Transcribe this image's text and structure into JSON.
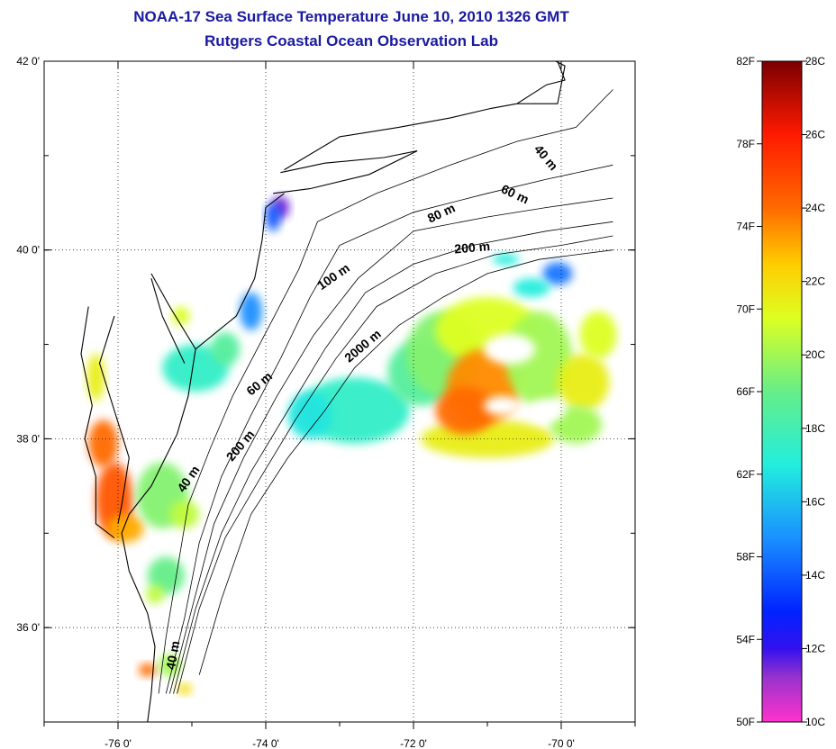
{
  "title_line1": "NOAA-17 Sea Surface Temperature June 10, 2010 1326 GMT",
  "title_line2": "Rutgers Coastal Ocean Observation Lab",
  "map": {
    "lon_range": [
      -77.0,
      -69.0
    ],
    "lat_range": [
      35.0,
      42.0
    ],
    "x_ticks": [
      {
        "value": -76,
        "label": "-76 0'"
      },
      {
        "value": -74,
        "label": "-74 0'"
      },
      {
        "value": -72,
        "label": "-72 0'"
      },
      {
        "value": -70,
        "label": "-70 0'"
      }
    ],
    "y_ticks": [
      {
        "value": 42,
        "label": "42 0'"
      },
      {
        "value": 40,
        "label": "40 0'"
      },
      {
        "value": 38,
        "label": "38 0'"
      },
      {
        "value": 36,
        "label": "36 0'"
      }
    ],
    "grid": "dotted",
    "contour_labels": [
      {
        "text": "40 m",
        "lon": -70.25,
        "lat": 40.95,
        "angle": 50
      },
      {
        "text": "60 m",
        "lon": -70.65,
        "lat": 40.55,
        "angle": 25
      },
      {
        "text": "80 m",
        "lon": -71.6,
        "lat": 40.35,
        "angle": -25
      },
      {
        "text": "200 m",
        "lon": -71.2,
        "lat": 39.98,
        "angle": -5
      },
      {
        "text": "100 m",
        "lon": -73.05,
        "lat": 39.68,
        "angle": -35
      },
      {
        "text": "2000 m",
        "lon": -72.65,
        "lat": 38.95,
        "angle": -40
      },
      {
        "text": "60 m",
        "lon": -74.05,
        "lat": 38.55,
        "angle": -40
      },
      {
        "text": "200 m",
        "lon": -74.3,
        "lat": 37.9,
        "angle": -50
      },
      {
        "text": "40 m",
        "lon": -75.0,
        "lat": 37.55,
        "angle": -55
      },
      {
        "text": "40 m",
        "lon": -75.2,
        "lat": 35.7,
        "angle": -80
      }
    ]
  },
  "colorbar": {
    "celsius_range": [
      10,
      28
    ],
    "fahrenheit_labels": [
      "82F",
      "78F",
      "74F",
      "70F",
      "66F",
      "62F",
      "58F",
      "54F",
      "50F"
    ],
    "celsius_labels": [
      "28C",
      "26C",
      "24C",
      "22C",
      "20C",
      "18C",
      "16C",
      "14C",
      "12C",
      "10C"
    ]
  },
  "sst_patches": [
    {
      "name": "hudson-canyon-cold",
      "lon": -73.8,
      "lat": 40.45,
      "rx": 0.12,
      "ry": 0.12,
      "tempC": 11.5
    },
    {
      "name": "nj-coast-cold",
      "lon": -73.9,
      "lat": 40.35,
      "rx": 0.1,
      "ry": 0.15,
      "tempC": 14
    },
    {
      "name": "nj-shelf-patch",
      "lon": -74.2,
      "lat": 39.35,
      "rx": 0.15,
      "ry": 0.2,
      "tempC": 15
    },
    {
      "name": "delaware-bay-mouth",
      "lon": -75.15,
      "lat": 39.3,
      "rx": 0.12,
      "ry": 0.1,
      "tempC": 21
    },
    {
      "name": "delmarva-shelf",
      "lon": -74.95,
      "lat": 38.75,
      "rx": 0.45,
      "ry": 0.25,
      "tempC": 17.5
    },
    {
      "name": "delmarva-shelf-b",
      "lon": -74.55,
      "lat": 38.95,
      "rx": 0.2,
      "ry": 0.18,
      "tempC": 18.5
    },
    {
      "name": "chesapeake-upper",
      "lon": -76.3,
      "lat": 38.65,
      "rx": 0.12,
      "ry": 0.25,
      "tempC": 21.5
    },
    {
      "name": "chesapeake-mid",
      "lon": -76.2,
      "lat": 37.95,
      "rx": 0.2,
      "ry": 0.25,
      "tempC": 24
    },
    {
      "name": "chesapeake-lower",
      "lon": -76.05,
      "lat": 37.35,
      "rx": 0.25,
      "ry": 0.4,
      "tempC": 24.5
    },
    {
      "name": "chesapeake-mouth",
      "lon": -75.9,
      "lat": 37.05,
      "rx": 0.25,
      "ry": 0.15,
      "tempC": 23
    },
    {
      "name": "virginia-shelf",
      "lon": -75.4,
      "lat": 37.4,
      "rx": 0.35,
      "ry": 0.35,
      "tempC": 19.5
    },
    {
      "name": "virginia-shelf-b",
      "lon": -75.1,
      "lat": 37.2,
      "rx": 0.2,
      "ry": 0.15,
      "tempC": 20.5
    },
    {
      "name": "va-south-shelf",
      "lon": -75.35,
      "lat": 36.55,
      "rx": 0.25,
      "ry": 0.2,
      "tempC": 19
    },
    {
      "name": "va-south-shelf-b",
      "lon": -75.5,
      "lat": 36.35,
      "rx": 0.12,
      "ry": 0.1,
      "tempC": 20.5
    },
    {
      "name": "hatteras-warm",
      "lon": -75.6,
      "lat": 35.55,
      "rx": 0.12,
      "ry": 0.07,
      "tempC": 24
    },
    {
      "name": "hatteras-green",
      "lon": -75.3,
      "lat": 35.6,
      "rx": 0.15,
      "ry": 0.12,
      "tempC": 20
    },
    {
      "name": "hatteras-yellow",
      "lon": -75.1,
      "lat": 35.35,
      "rx": 0.1,
      "ry": 0.06,
      "tempC": 22
    },
    {
      "name": "slope-cyan-west",
      "lon": -72.8,
      "lat": 38.3,
      "rx": 0.75,
      "ry": 0.35,
      "tempC": 17.5
    },
    {
      "name": "slope-cyan-west-b",
      "lon": -73.4,
      "lat": 38.25,
      "rx": 0.3,
      "ry": 0.25,
      "tempC": 16.8
    },
    {
      "name": "slope-cyan-mid",
      "lon": -71.9,
      "lat": 38.7,
      "rx": 0.45,
      "ry": 0.35,
      "tempC": 18.5
    },
    {
      "name": "slope-green",
      "lon": -71.6,
      "lat": 38.9,
      "rx": 0.5,
      "ry": 0.45,
      "tempC": 19.5
    },
    {
      "name": "gulf-stream-yellow-south",
      "lon": -71.0,
      "lat": 38.0,
      "rx": 0.9,
      "ry": 0.2,
      "tempC": 21.5
    },
    {
      "name": "gulf-stream-north",
      "lon": -71.0,
      "lat": 39.15,
      "rx": 0.7,
      "ry": 0.35,
      "tempC": 21
    },
    {
      "name": "warm-core-ring",
      "lon": -71.05,
      "lat": 38.55,
      "rx": 0.5,
      "ry": 0.4,
      "tempC": 23.5
    },
    {
      "name": "warm-core-ring-b",
      "lon": -71.3,
      "lat": 38.3,
      "rx": 0.4,
      "ry": 0.25,
      "tempC": 24
    },
    {
      "name": "east-green",
      "lon": -70.3,
      "lat": 38.85,
      "rx": 0.45,
      "ry": 0.5,
      "tempC": 20
    },
    {
      "name": "east-yellow",
      "lon": -69.7,
      "lat": 38.6,
      "rx": 0.35,
      "ry": 0.3,
      "tempC": 21.5
    },
    {
      "name": "east-yellow-b",
      "lon": -69.5,
      "lat": 39.1,
      "rx": 0.25,
      "ry": 0.25,
      "tempC": 21
    },
    {
      "name": "southeast-green",
      "lon": -69.8,
      "lat": 38.15,
      "rx": 0.35,
      "ry": 0.2,
      "tempC": 20
    },
    {
      "name": "shelf-break-blue",
      "lon": -70.05,
      "lat": 39.75,
      "rx": 0.2,
      "ry": 0.12,
      "tempC": 14.5
    },
    {
      "name": "shelf-break-cyan",
      "lon": -70.4,
      "lat": 39.6,
      "rx": 0.25,
      "ry": 0.1,
      "tempC": 17
    },
    {
      "name": "south-shelf-cyan",
      "lon": -70.75,
      "lat": 39.9,
      "rx": 0.18,
      "ry": 0.06,
      "tempC": 17
    }
  ],
  "cloud_holes": [
    {
      "lon": -70.7,
      "lat": 38.95,
      "rx": 0.35,
      "ry": 0.16
    },
    {
      "lon": -70.8,
      "lat": 38.35,
      "rx": 0.25,
      "ry": 0.1
    },
    {
      "lon": -70.2,
      "lat": 38.3,
      "rx": 0.25,
      "ry": 0.12
    }
  ],
  "coastline": {
    "mainland": [
      [
        -73.75,
        40.6
      ],
      [
        -74.0,
        40.45
      ],
      [
        -74.05,
        40.1
      ],
      [
        -74.15,
        39.7
      ],
      [
        -74.4,
        39.3
      ],
      [
        -74.95,
        38.95
      ],
      [
        -75.05,
        38.45
      ],
      [
        -75.2,
        38.05
      ],
      [
        -75.55,
        37.5
      ],
      [
        -75.85,
        37.2
      ],
      [
        -75.95,
        37.0
      ],
      [
        -75.85,
        36.6
      ],
      [
        -75.6,
        36.15
      ],
      [
        -75.5,
        35.8
      ],
      [
        -75.55,
        35.3
      ],
      [
        -75.6,
        35.0
      ]
    ],
    "long_island": [
      [
        -73.9,
        40.6
      ],
      [
        -73.4,
        40.65
      ],
      [
        -72.6,
        40.8
      ],
      [
        -71.95,
        41.05
      ],
      [
        -72.4,
        40.98
      ],
      [
        -73.2,
        40.92
      ],
      [
        -73.8,
        40.82
      ]
    ],
    "new_england": [
      [
        -73.75,
        40.85
      ],
      [
        -73.0,
        41.2
      ],
      [
        -72.2,
        41.3
      ],
      [
        -71.5,
        41.4
      ],
      [
        -70.95,
        41.5
      ],
      [
        -70.6,
        41.55
      ],
      [
        -70.2,
        41.75
      ],
      [
        -69.95,
        41.8
      ],
      [
        -70.05,
        42.0
      ]
    ],
    "cape_cod": [
      [
        -70.6,
        41.55
      ],
      [
        -70.05,
        41.55
      ],
      [
        -69.95,
        41.95
      ],
      [
        -70.2,
        42.05
      ]
    ],
    "chesapeake_west": [
      [
        -76.4,
        39.4
      ],
      [
        -76.5,
        38.9
      ],
      [
        -76.35,
        38.35
      ],
      [
        -76.45,
        38.0
      ],
      [
        -76.3,
        37.6
      ],
      [
        -76.3,
        37.1
      ],
      [
        -76.05,
        36.95
      ]
    ],
    "chesapeake_east": [
      [
        -76.05,
        39.3
      ],
      [
        -76.25,
        38.8
      ],
      [
        -76.05,
        38.3
      ],
      [
        -75.85,
        37.8
      ],
      [
        -75.95,
        37.3
      ],
      [
        -76.0,
        37.1
      ]
    ],
    "delaware_bay_west": [
      [
        -75.55,
        39.7
      ],
      [
        -75.4,
        39.3
      ],
      [
        -75.1,
        38.8
      ]
    ],
    "delaware_bay_east": [
      [
        -75.55,
        39.75
      ],
      [
        -75.3,
        39.4
      ],
      [
        -74.95,
        38.95
      ]
    ]
  },
  "isobaths": [
    {
      "name": "40 m",
      "points": [
        [
          -75.45,
          35.3
        ],
        [
          -75.35,
          35.9
        ],
        [
          -75.2,
          36.6
        ],
        [
          -75.05,
          37.3
        ],
        [
          -74.75,
          37.9
        ],
        [
          -74.45,
          38.45
        ],
        [
          -74.15,
          38.9
        ],
        [
          -73.85,
          39.35
        ],
        [
          -73.55,
          39.8
        ],
        [
          -73.3,
          40.3
        ],
        [
          -72.5,
          40.6
        ],
        [
          -71.5,
          40.9
        ],
        [
          -70.6,
          41.15
        ],
        [
          -69.8,
          41.3
        ],
        [
          -69.3,
          41.7
        ]
      ]
    },
    {
      "name": "60 m",
      "points": [
        [
          -75.35,
          35.3
        ],
        [
          -75.1,
          36.1
        ],
        [
          -74.9,
          36.9
        ],
        [
          -74.6,
          37.6
        ],
        [
          -74.2,
          38.25
        ],
        [
          -73.8,
          38.85
        ],
        [
          -73.4,
          39.5
        ],
        [
          -73.0,
          40.05
        ],
        [
          -72.0,
          40.4
        ],
        [
          -71.0,
          40.6
        ],
        [
          -70.2,
          40.75
        ],
        [
          -69.3,
          40.9
        ]
      ]
    },
    {
      "name": "80 m",
      "points": [
        [
          -75.3,
          35.3
        ],
        [
          -75.0,
          36.2
        ],
        [
          -74.7,
          37.1
        ],
        [
          -74.3,
          37.8
        ],
        [
          -73.85,
          38.45
        ],
        [
          -73.35,
          39.1
        ],
        [
          -72.75,
          39.7
        ],
        [
          -72.0,
          40.2
        ],
        [
          -71.0,
          40.35
        ],
        [
          -70.2,
          40.45
        ],
        [
          -69.3,
          40.55
        ]
      ]
    },
    {
      "name": "100 m",
      "points": [
        [
          -75.25,
          35.3
        ],
        [
          -74.95,
          36.2
        ],
        [
          -74.6,
          37.0
        ],
        [
          -74.2,
          37.65
        ],
        [
          -73.7,
          38.3
        ],
        [
          -73.2,
          38.95
        ],
        [
          -72.65,
          39.55
        ],
        [
          -72.0,
          39.85
        ],
        [
          -71.2,
          40.05
        ],
        [
          -70.2,
          40.2
        ],
        [
          -69.3,
          40.3
        ]
      ]
    },
    {
      "name": "200 m",
      "points": [
        [
          -75.2,
          35.3
        ],
        [
          -74.9,
          36.2
        ],
        [
          -74.55,
          36.95
        ],
        [
          -74.1,
          37.55
        ],
        [
          -73.6,
          38.2
        ],
        [
          -73.05,
          38.85
        ],
        [
          -72.5,
          39.4
        ],
        [
          -71.7,
          39.75
        ],
        [
          -70.9,
          39.95
        ],
        [
          -70.0,
          40.05
        ],
        [
          -69.3,
          40.15
        ]
      ]
    },
    {
      "name": "2000 m",
      "points": [
        [
          -74.9,
          35.5
        ],
        [
          -74.6,
          36.3
        ],
        [
          -74.2,
          37.2
        ],
        [
          -73.7,
          37.8
        ],
        [
          -73.2,
          38.3
        ],
        [
          -72.8,
          38.75
        ],
        [
          -72.2,
          39.2
        ],
        [
          -71.6,
          39.5
        ],
        [
          -71.0,
          39.75
        ],
        [
          -70.3,
          39.9
        ],
        [
          -69.3,
          40.0
        ]
      ]
    }
  ]
}
